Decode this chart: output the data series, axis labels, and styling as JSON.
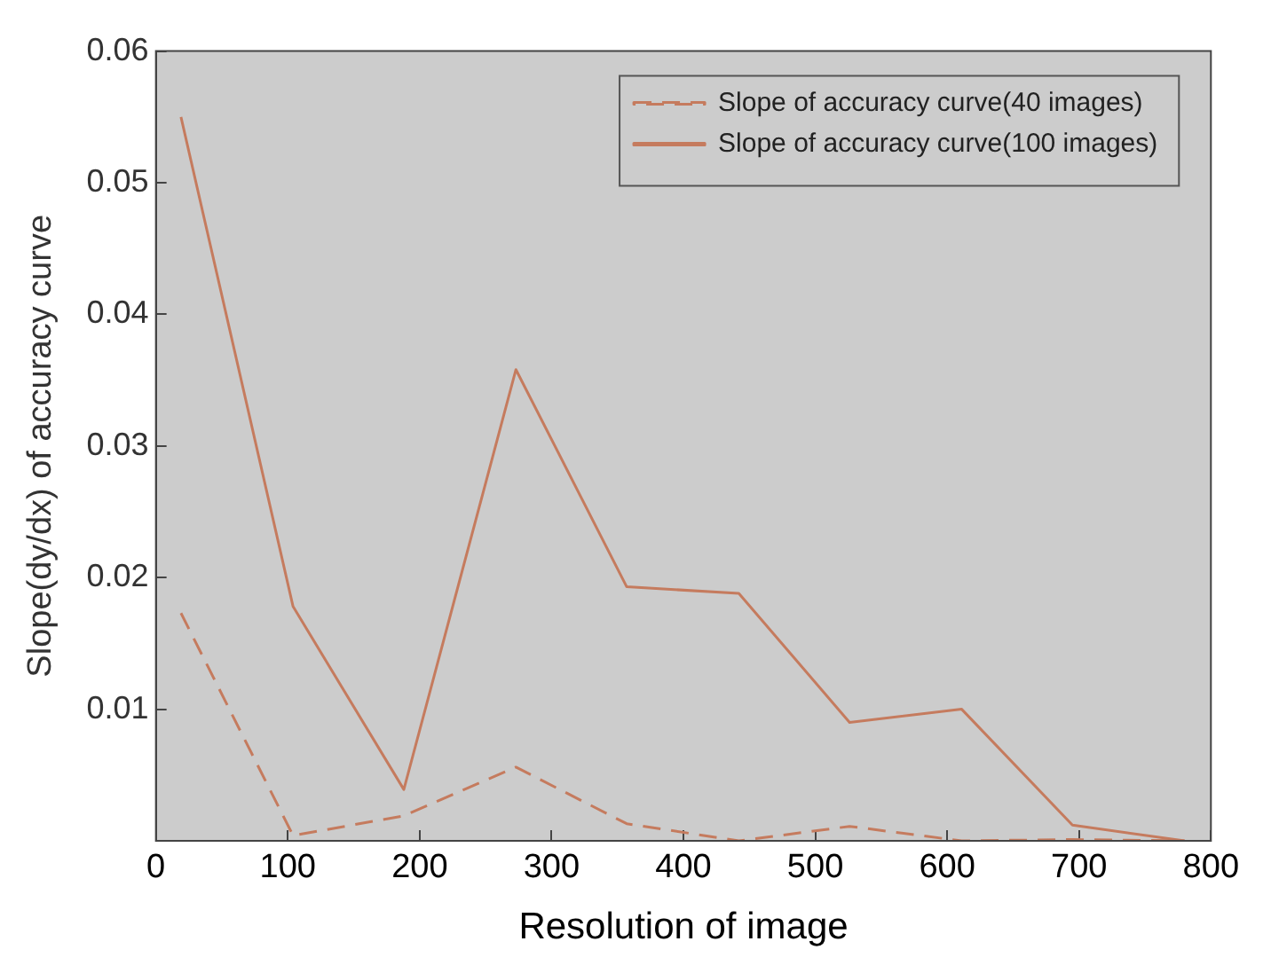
{
  "chart_data": {
    "type": "line",
    "xlabel": "Resolution of image",
    "ylabel": "Slope(dy/dx) of accuracy curve",
    "x": [
      19,
      104,
      188,
      273,
      357,
      442,
      526,
      611,
      695,
      780
    ],
    "series": [
      {
        "name": "Slope of accuracy curve(40 images)",
        "color": "#c57b5e",
        "line_style": "dashed",
        "values": [
          0.0173,
          0.0004,
          0.0019,
          0.0056,
          0.0013,
          0,
          0.0011,
          0,
          0.0001,
          0
        ]
      },
      {
        "name": "Slope of accuracy curve(100 images)",
        "color": "#c57b5e",
        "line_style": "solid",
        "values": [
          0.055,
          0.0178,
          0.0039,
          0.0358,
          0.0193,
          0.0188,
          0.009,
          0.01,
          0.0012,
          0
        ]
      }
    ],
    "xlim": [
      0,
      800
    ],
    "xticks": [
      0,
      100,
      200,
      300,
      400,
      500,
      600,
      700,
      800
    ],
    "ylim": [
      0,
      0.06
    ],
    "yticks": [
      0.01,
      0.02,
      0.03,
      0.04,
      0.05,
      0.06
    ],
    "grid": false,
    "legend": "top right",
    "marker": "none"
  }
}
